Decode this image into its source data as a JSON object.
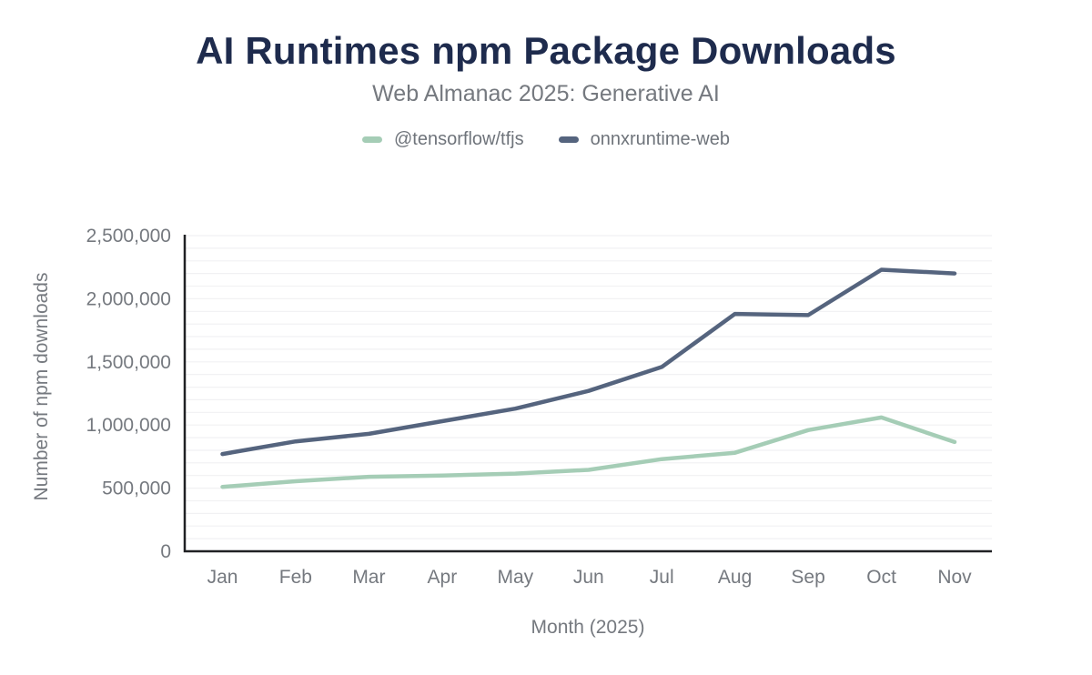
{
  "header": {
    "title": "AI Runtimes npm Package Downloads",
    "subtitle": "Web Almanac 2025: Generative AI"
  },
  "legend": {
    "items": [
      {
        "label": "@tensorflow/tfjs",
        "color": "#a5cdb6"
      },
      {
        "label": "onnxruntime-web",
        "color": "#55647e"
      }
    ]
  },
  "chart_data": {
    "type": "line",
    "title": "AI Runtimes npm Package Downloads",
    "subtitle": "Web Almanac 2025: Generative AI",
    "xlabel": "Month (2025)",
    "ylabel": "Number of npm downloads",
    "categories": [
      "Jan",
      "Feb",
      "Mar",
      "Apr",
      "May",
      "Jun",
      "Jul",
      "Aug",
      "Sep",
      "Oct",
      "Nov"
    ],
    "series": [
      {
        "name": "@tensorflow/tfjs",
        "color": "#a5cdb6",
        "values": [
          510000,
          555000,
          590000,
          600000,
          615000,
          645000,
          730000,
          780000,
          960000,
          1060000,
          865000
        ]
      },
      {
        "name": "onnxruntime-web",
        "color": "#55647e",
        "values": [
          770000,
          870000,
          930000,
          1030000,
          1130000,
          1270000,
          1460000,
          1880000,
          1870000,
          2230000,
          2200000
        ]
      }
    ],
    "ylim": [
      0,
      2500000
    ],
    "y_tick_step": 500000,
    "y_ticks": [
      "0",
      "500,000",
      "1,000,000",
      "1,500,000",
      "2,000,000",
      "2,500,000"
    ],
    "minor_grid_step": 100000,
    "grid": true,
    "legend_position": "top"
  },
  "style": {
    "grid_color": "#f1f1f3",
    "axis_color": "#202124",
    "tick_text_color": "#75797f",
    "title_color": "#1e2b4d",
    "subtitle_color": "#75797f",
    "background": "#ffffff"
  }
}
